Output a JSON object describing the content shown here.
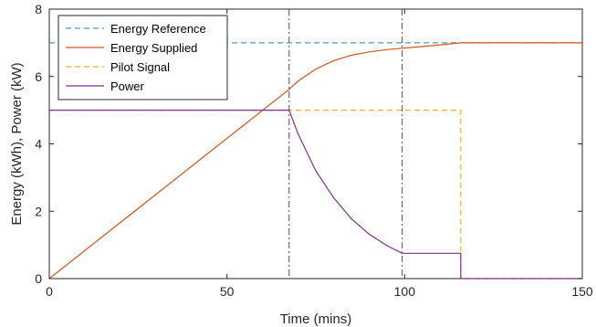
{
  "chart_data": {
    "type": "line",
    "xlabel": "Time (mins)",
    "ylabel": "Energy (kWh), Power (kW)",
    "xlim": [
      0,
      150
    ],
    "ylim": [
      0,
      8
    ],
    "xticks": [
      0,
      50,
      100,
      150
    ],
    "yticks": [
      0,
      2,
      4,
      6,
      8
    ],
    "grid": false,
    "legend_position": "top-left",
    "vlines": [
      67.5,
      99.3
    ],
    "vline_color": "#4d4d4d",
    "series": [
      {
        "name": "Energy Reference",
        "color": "#4a9bc4",
        "dash": "dashed",
        "x": [
          0,
          150
        ],
        "y": [
          7,
          7
        ]
      },
      {
        "name": "Energy Supplied",
        "color": "#d95319",
        "dash": "solid",
        "x": [
          0,
          67.5,
          70,
          75,
          80,
          85,
          90,
          95,
          99.3,
          105,
          110,
          115.8,
          150
        ],
        "y": [
          0,
          5.62,
          5.86,
          6.22,
          6.47,
          6.63,
          6.73,
          6.8,
          6.84,
          6.89,
          6.94,
          7.0,
          7.0
        ]
      },
      {
        "name": "Pilot Signal",
        "color": "#edb120",
        "dash": "dashed",
        "x": [
          0,
          115.8,
          115.8,
          150
        ],
        "y": [
          5,
          5,
          0,
          0
        ]
      },
      {
        "name": "Power",
        "color": "#7e2f8e",
        "dash": "solid",
        "x": [
          0,
          67.5,
          70,
          75,
          80,
          85,
          90,
          95,
          99.3,
          115.8,
          115.8,
          150
        ],
        "y": [
          5,
          5,
          4.3,
          3.2,
          2.4,
          1.78,
          1.32,
          0.98,
          0.75,
          0.75,
          0,
          0
        ]
      }
    ]
  }
}
